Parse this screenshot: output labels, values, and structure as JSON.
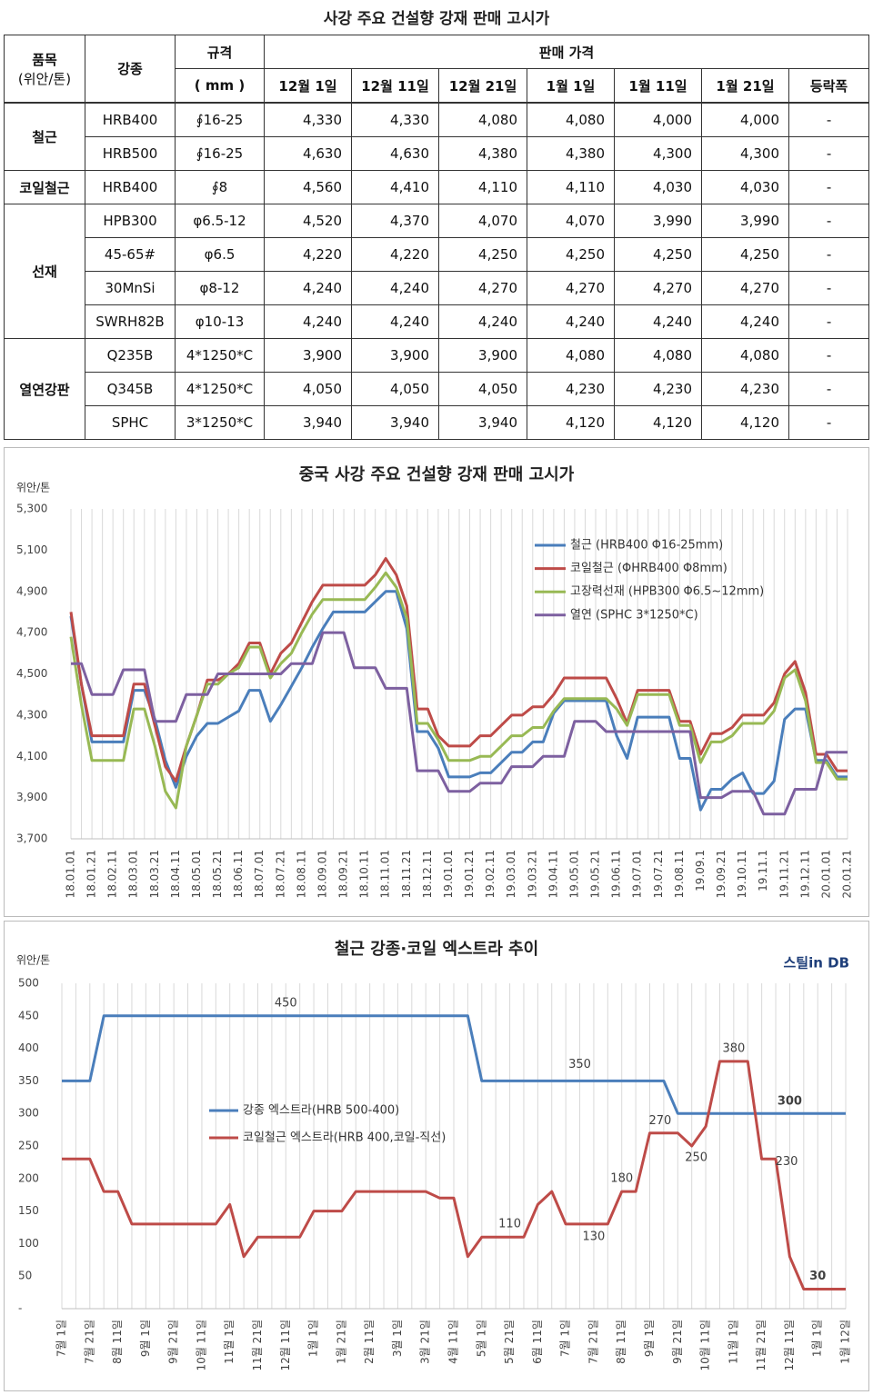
{
  "table": {
    "title": "사강 주요 건설향 강재 판매 고시가",
    "header": {
      "item": "품목",
      "unit": "(위안/톤)",
      "grade": "강종",
      "spec": "규격",
      "spec_unit": "( mm )",
      "price": "판매 가격",
      "dates": [
        "12월 1일",
        "12월 11일",
        "12월 21일",
        "1월 1일",
        "1월 11일",
        "1월 21일"
      ],
      "change": "등락폭"
    },
    "groups": [
      {
        "name": "철근",
        "rows": [
          [
            "HRB400",
            "∮16-25",
            "4,330",
            "4,330",
            "4,080",
            "4,080",
            "4,000",
            "4,000",
            "-"
          ],
          [
            "HRB500",
            "∮16-25",
            "4,630",
            "4,630",
            "4,380",
            "4,380",
            "4,300",
            "4,300",
            "-"
          ]
        ]
      },
      {
        "name": "코일철근",
        "rows": [
          [
            "HRB400",
            "∮8",
            "4,560",
            "4,410",
            "4,110",
            "4,110",
            "4,030",
            "4,030",
            "-"
          ]
        ]
      },
      {
        "name": "선재",
        "rows": [
          [
            "HPB300",
            "φ6.5-12",
            "4,520",
            "4,370",
            "4,070",
            "4,070",
            "3,990",
            "3,990",
            "-"
          ],
          [
            "45-65#",
            "φ6.5",
            "4,220",
            "4,220",
            "4,250",
            "4,250",
            "4,250",
            "4,250",
            "-"
          ],
          [
            "30MnSi",
            "φ8-12",
            "4,240",
            "4,240",
            "4,270",
            "4,270",
            "4,270",
            "4,270",
            "-"
          ],
          [
            "SWRH82B",
            "φ10-13",
            "4,240",
            "4,240",
            "4,240",
            "4,240",
            "4,240",
            "4,240",
            "-"
          ]
        ]
      },
      {
        "name": "열연강판",
        "rows": [
          [
            "Q235B",
            "4*1250*C",
            "3,900",
            "3,900",
            "3,900",
            "4,080",
            "4,080",
            "4,080",
            "-"
          ],
          [
            "Q345B",
            "4*1250*C",
            "4,050",
            "4,050",
            "4,050",
            "4,230",
            "4,230",
            "4,230",
            "-"
          ],
          [
            "SPHC",
            "3*1250*C",
            "3,940",
            "3,940",
            "3,940",
            "4,120",
            "4,120",
            "4,120",
            "-"
          ]
        ]
      }
    ]
  },
  "chart_data": [
    {
      "type": "line",
      "title": "중국 사강 주요 건설향 강재 판매 고시가",
      "y_label": "위안/톤",
      "grid": true,
      "categories": [
        "18.01.01",
        null,
        "18.01.21",
        null,
        "18.02.11",
        null,
        "18.03.01",
        null,
        "18.03.21",
        null,
        "18.04.11",
        null,
        "18.05.01",
        null,
        "18.05.21",
        null,
        "18.06.11",
        null,
        "18.07.01",
        null,
        "18.07.21",
        null,
        "18.08.11",
        null,
        "18.09.01",
        null,
        "18.09.21",
        null,
        "18.10.11",
        null,
        "18.11.01",
        null,
        "18.11.21",
        null,
        "18.12.11",
        null,
        "19.01.01",
        null,
        "19.01.21",
        null,
        "19.02.11",
        null,
        "19.03.01",
        null,
        "19.03.21",
        null,
        "19.04.11",
        null,
        "19.05.01",
        null,
        "19.05.21",
        null,
        "19.06.11",
        null,
        "19.07.01",
        null,
        "19.07.21",
        null,
        "19.08.11",
        null,
        "19.09.1",
        null,
        "19.09.21",
        null,
        "19.10.11",
        null,
        "19.11.1",
        null,
        "19.11.21",
        null,
        "19.12.11",
        null,
        "20.01.01",
        null,
        "20.01.21"
      ],
      "ylim": [
        3700,
        5300
      ],
      "yticks": [
        {
          "value": 3700,
          "label": "3,700"
        },
        {
          "value": 3900,
          "label": "3,900"
        },
        {
          "value": 4100,
          "label": "4,100"
        },
        {
          "value": 4300,
          "label": "4,300"
        },
        {
          "value": 4500,
          "label": "4,500"
        },
        {
          "value": 4700,
          "label": "4,700"
        },
        {
          "value": 4900,
          "label": "4,900"
        },
        {
          "value": 5100,
          "label": "5,100"
        },
        {
          "value": 5300,
          "label": "5,300"
        }
      ],
      "series": [
        {
          "name": "철근 (HRB400 Φ16-25mm)",
          "color": "#4a7ebb",
          "values": [
            4780,
            4450,
            4170,
            4170,
            4170,
            4170,
            4420,
            4420,
            4280,
            4080,
            3950,
            4100,
            4200,
            4260,
            4260,
            4290,
            4320,
            4420,
            4420,
            4270,
            4350,
            4440,
            4530,
            4630,
            4720,
            4800,
            4800,
            4800,
            4800,
            4850,
            4900,
            4900,
            4720,
            4220,
            4220,
            4140,
            4000,
            4000,
            4000,
            4020,
            4020,
            4070,
            4120,
            4120,
            4170,
            4170,
            4310,
            4370,
            4370,
            4370,
            4370,
            4370,
            4200,
            4090,
            4290,
            4290,
            4290,
            4290,
            4090,
            4090,
            3840,
            3940,
            3940,
            3990,
            4020,
            3920,
            3920,
            3980,
            4280,
            4330,
            4330,
            4080,
            4080,
            4000,
            4000
          ]
        },
        {
          "name": "코일철근 (ΦHRB400 Φ8mm)",
          "color": "#be4b48",
          "values": [
            4800,
            4450,
            4200,
            4200,
            4200,
            4200,
            4450,
            4450,
            4250,
            4050,
            3980,
            4150,
            4300,
            4470,
            4470,
            4500,
            4550,
            4650,
            4650,
            4500,
            4600,
            4650,
            4750,
            4850,
            4930,
            4930,
            4930,
            4930,
            4930,
            4980,
            5060,
            4980,
            4830,
            4330,
            4330,
            4200,
            4150,
            4150,
            4150,
            4200,
            4200,
            4250,
            4300,
            4300,
            4340,
            4340,
            4400,
            4480,
            4480,
            4480,
            4480,
            4480,
            4380,
            4260,
            4420,
            4420,
            4420,
            4420,
            4270,
            4270,
            4110,
            4210,
            4210,
            4240,
            4300,
            4300,
            4300,
            4360,
            4500,
            4560,
            4410,
            4110,
            4110,
            4030,
            4030
          ]
        },
        {
          "name": "고장력선재 (HPB300 Φ6.5~12mm)",
          "color": "#98b954",
          "values": [
            4680,
            4350,
            4080,
            4080,
            4080,
            4080,
            4330,
            4330,
            4150,
            3930,
            3850,
            4150,
            4300,
            4450,
            4450,
            4500,
            4530,
            4630,
            4630,
            4480,
            4550,
            4600,
            4700,
            4790,
            4860,
            4860,
            4860,
            4860,
            4860,
            4920,
            4990,
            4920,
            4770,
            4260,
            4260,
            4180,
            4080,
            4080,
            4080,
            4100,
            4100,
            4150,
            4200,
            4200,
            4240,
            4240,
            4320,
            4380,
            4380,
            4380,
            4380,
            4380,
            4330,
            4250,
            4400,
            4400,
            4400,
            4400,
            4250,
            4250,
            4070,
            4170,
            4170,
            4200,
            4260,
            4260,
            4260,
            4320,
            4480,
            4520,
            4370,
            4070,
            4070,
            3990,
            3990
          ]
        },
        {
          "name": "열연 (SPHC 3*1250*C)",
          "color": "#7d60a0",
          "values": [
            4550,
            4550,
            4400,
            4400,
            4400,
            4520,
            4520,
            4520,
            4270,
            4270,
            4270,
            4400,
            4400,
            4400,
            4500,
            4500,
            4500,
            4500,
            4500,
            4500,
            4500,
            4550,
            4550,
            4550,
            4700,
            4700,
            4700,
            4530,
            4530,
            4530,
            4430,
            4430,
            4430,
            4030,
            4030,
            4030,
            3930,
            3930,
            3930,
            3970,
            3970,
            3970,
            4050,
            4050,
            4050,
            4100,
            4100,
            4100,
            4270,
            4270,
            4270,
            4220,
            4220,
            4220,
            4220,
            4220,
            4220,
            4220,
            4220,
            4220,
            3900,
            3900,
            3900,
            3930,
            3930,
            3930,
            3820,
            3820,
            3820,
            3940,
            3940,
            3940,
            4120,
            4120,
            4120
          ]
        }
      ]
    },
    {
      "type": "line",
      "title": "철근 강종·코일 엑스트라 추이",
      "y_label": "위안/톤",
      "logo": "스틸in DB",
      "grid": true,
      "categories": [
        "7월 1일",
        null,
        "7월 21일",
        null,
        "8월 11일",
        null,
        "9월 1일",
        null,
        "9월 21일",
        null,
        "10월 11일",
        null,
        "11월 1일",
        null,
        "11월 21일",
        null,
        "12월 11일",
        null,
        "1월 1일",
        null,
        "1월 21일",
        null,
        "2월 11일",
        null,
        "3월 1일",
        null,
        "3월 21일",
        null,
        "4월 11일",
        null,
        "5월 1일",
        null,
        "5월 21일",
        null,
        "6월 11일",
        null,
        "7월 1일",
        null,
        "7월 21일",
        null,
        "8월 11일",
        null,
        "9월 1일",
        null,
        "9월 21일",
        null,
        "10월 11일",
        null,
        "11월 1일",
        null,
        "11월 21일",
        null,
        "12월 11일",
        null,
        "1월 1일",
        null,
        "1월 12일"
      ],
      "ylim": [
        0,
        500
      ],
      "yticks": [
        {
          "value": 0,
          "label": "-"
        },
        50,
        100,
        150,
        200,
        250,
        300,
        350,
        400,
        450,
        500
      ],
      "series": [
        {
          "name": "강종 엑스트라(HRB 500-400)",
          "color": "#4a7ebb",
          "values": [
            350,
            350,
            350,
            450,
            450,
            450,
            450,
            450,
            450,
            450,
            450,
            450,
            450,
            450,
            450,
            450,
            450,
            450,
            450,
            450,
            450,
            450,
            450,
            450,
            450,
            450,
            450,
            450,
            450,
            450,
            350,
            350,
            350,
            350,
            350,
            350,
            350,
            350,
            350,
            350,
            350,
            350,
            350,
            350,
            300,
            300,
            300,
            300,
            300,
            300,
            300,
            300,
            300,
            300,
            300,
            300,
            300
          ]
        },
        {
          "name": "코일철근 엑스트라(HRB 400,코일-직선)",
          "color": "#be4b48",
          "values": [
            230,
            230,
            230,
            180,
            180,
            130,
            130,
            130,
            130,
            130,
            130,
            130,
            160,
            80,
            110,
            110,
            110,
            110,
            150,
            150,
            150,
            180,
            180,
            180,
            180,
            180,
            180,
            170,
            170,
            80,
            110,
            110,
            110,
            110,
            160,
            180,
            130,
            130,
            130,
            130,
            180,
            180,
            270,
            270,
            270,
            250,
            280,
            380,
            380,
            380,
            230,
            230,
            80,
            30,
            30,
            30,
            30
          ]
        }
      ]
    }
  ]
}
